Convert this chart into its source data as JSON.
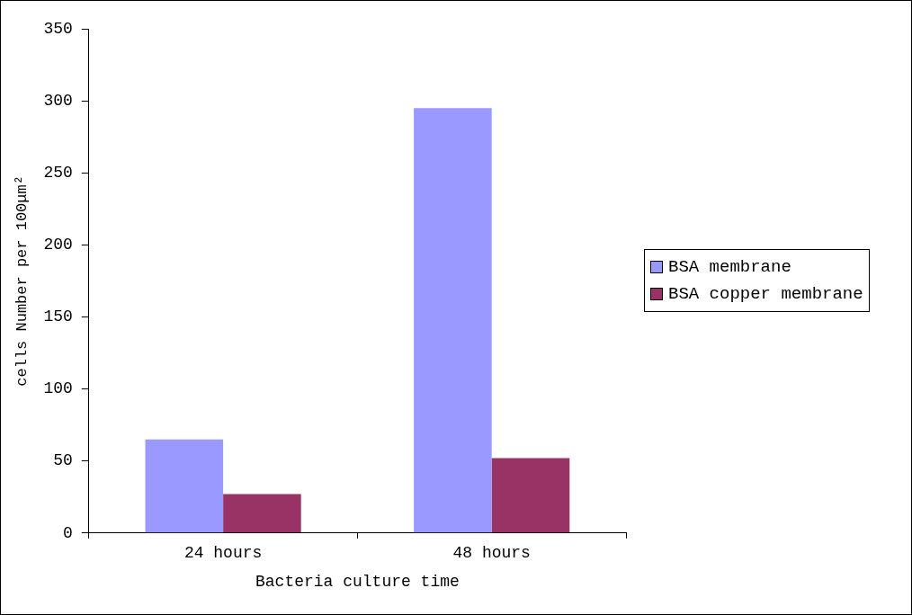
{
  "chart_data": {
    "type": "bar",
    "xlabel": "Bacteria culture time",
    "ylabel": "cells Number per 100μm²",
    "categories": [
      "24 hours",
      "48 hours"
    ],
    "series": [
      {
        "name": "BSA membrane",
        "color": "#9999ff",
        "values": [
          65,
          295
        ]
      },
      {
        "name": "BSA copper membrane",
        "color": "#993366",
        "values": [
          27,
          52
        ]
      }
    ],
    "ylim": [
      0,
      350
    ],
    "yticks": [
      0,
      50,
      100,
      150,
      200,
      250,
      300,
      350
    ],
    "grid": false,
    "legend": "right"
  }
}
